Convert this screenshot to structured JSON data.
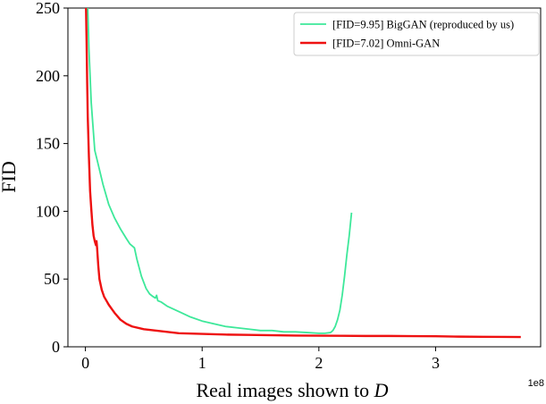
{
  "chart_data": {
    "type": "line",
    "title": "",
    "xlabel": "Real images shown to ",
    "xlabel_var": "D",
    "ylabel": "FID",
    "x_offset_label": "1e8",
    "xlim": [
      -0.15,
      3.9
    ],
    "ylim": [
      0,
      250
    ],
    "xticks": [
      0,
      1,
      2,
      3
    ],
    "xtick_labels": [
      "0",
      "1",
      "2",
      "3"
    ],
    "yticks": [
      0,
      50,
      100,
      150,
      200,
      250
    ],
    "ytick_labels": [
      "0",
      "50",
      "100",
      "150",
      "200",
      "250"
    ],
    "grid": false,
    "legend_position": "top-right",
    "series": [
      {
        "name": "[FID=9.95] BigGAN (reproduced by us)",
        "color": "#3de89a",
        "x": [
          0.02,
          0.03,
          0.05,
          0.08,
          0.1,
          0.15,
          0.2,
          0.25,
          0.3,
          0.35,
          0.38,
          0.42,
          0.44,
          0.48,
          0.52,
          0.55,
          0.58,
          0.6,
          0.61,
          0.62,
          0.65,
          0.7,
          0.8,
          0.9,
          1.0,
          1.1,
          1.2,
          1.3,
          1.4,
          1.5,
          1.6,
          1.7,
          1.8,
          1.9,
          2.0,
          2.05,
          2.1,
          2.12,
          2.14,
          2.16,
          2.18,
          2.2,
          2.22,
          2.24,
          2.26,
          2.28
        ],
        "values": [
          250,
          220,
          180,
          145,
          138,
          120,
          105,
          95,
          87,
          80,
          76,
          73,
          65,
          52,
          43,
          39,
          37,
          36,
          38,
          34,
          33,
          30,
          26,
          22,
          19,
          17,
          15,
          14,
          13,
          12,
          12,
          11,
          11,
          10.5,
          10,
          10,
          10.5,
          12,
          15,
          20,
          27,
          38,
          52,
          68,
          82,
          99
        ]
      },
      {
        "name": "[FID=7.02] Omni-GAN",
        "color": "#ee1111",
        "x": [
          0.005,
          0.01,
          0.015,
          0.02,
          0.03,
          0.04,
          0.05,
          0.06,
          0.07,
          0.08,
          0.09,
          0.095,
          0.1,
          0.11,
          0.12,
          0.14,
          0.16,
          0.18,
          0.2,
          0.25,
          0.3,
          0.35,
          0.4,
          0.5,
          0.6,
          0.7,
          0.8,
          1.0,
          1.2,
          1.4,
          1.6,
          1.8,
          2.0,
          2.2,
          2.4,
          2.6,
          2.8,
          3.0,
          3.2,
          3.4,
          3.6,
          3.73
        ],
        "values": [
          250,
          225,
          195,
          170,
          140,
          115,
          102,
          90,
          82,
          78,
          75,
          78,
          73,
          60,
          50,
          42,
          37,
          34,
          31,
          25,
          20,
          17,
          15,
          13,
          12,
          11,
          10,
          9.5,
          9,
          8.8,
          8.5,
          8.3,
          8.2,
          8.1,
          8,
          8,
          7.9,
          7.8,
          7.5,
          7.4,
          7.3,
          7.2
        ]
      }
    ]
  }
}
